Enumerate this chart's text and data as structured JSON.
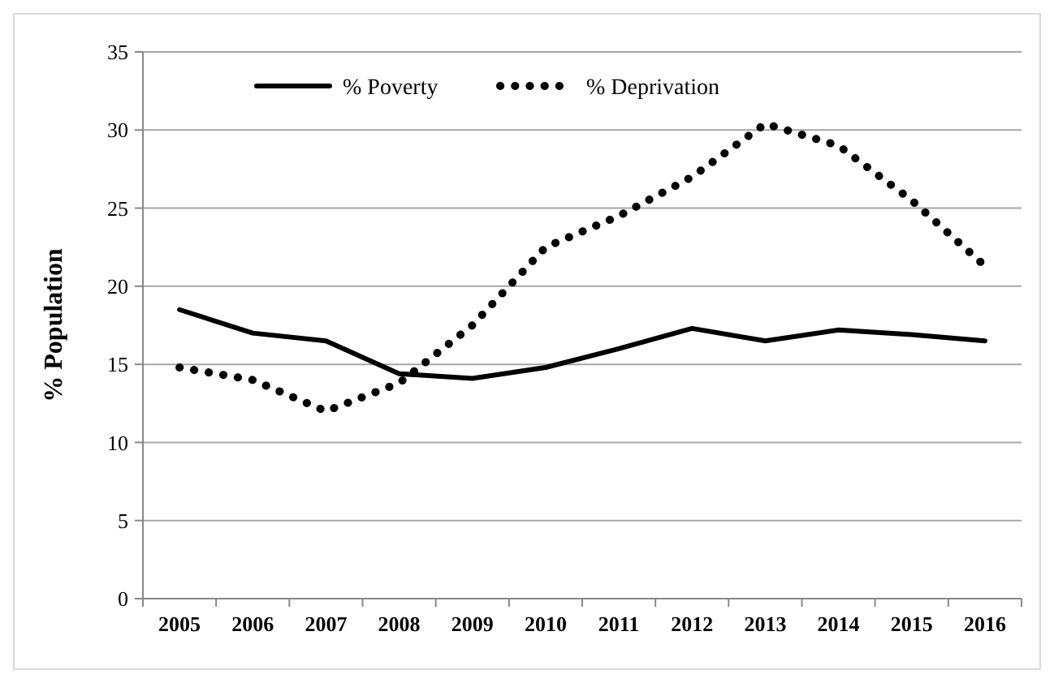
{
  "chart_data": {
    "type": "line",
    "ylabel": "% Population",
    "categories": [
      "2005",
      "2006",
      "2007",
      "2008",
      "2009",
      "2010",
      "2011",
      "2012",
      "2013",
      "2014",
      "2015",
      "2016"
    ],
    "series": [
      {
        "name": "% Poverty",
        "color": "#000000",
        "line_style": "solid",
        "values": [
          18.5,
          17.0,
          16.5,
          14.4,
          14.1,
          14.8,
          16.0,
          17.3,
          16.5,
          17.2,
          16.9,
          16.5
        ]
      },
      {
        "name": "% Deprivation",
        "color": "#000000",
        "line_style": "dotted",
        "values": [
          14.8,
          14.0,
          12.0,
          13.8,
          17.5,
          22.5,
          24.5,
          27.0,
          30.4,
          29.0,
          25.5,
          21.3
        ]
      }
    ],
    "ylim": [
      0,
      35
    ],
    "yticks": [
      0,
      5,
      10,
      15,
      20,
      25,
      30,
      35
    ],
    "grid": "y",
    "legend": "top"
  }
}
